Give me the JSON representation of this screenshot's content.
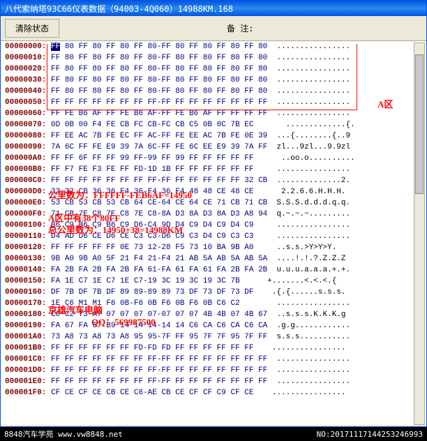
{
  "window": {
    "title": "八代索纳塔93C66仪表数据（94003-4Q060）14988KM.168"
  },
  "toolbar": {
    "clear_btn": "清除状态",
    "remark_label": "备 注:"
  },
  "hex": {
    "rows": [
      {
        "addr": "00000000:",
        "b": "FF 80 FF 80 FF 80 FF 80-FF 80 FF 80 FF 80 FF 80",
        "a": "................"
      },
      {
        "addr": "00000010:",
        "b": "FF 80 FF 80 FF 80 FF 80-FF 80 FF 80 FF 80 FF 80",
        "a": "................"
      },
      {
        "addr": "00000020:",
        "b": "FF 80 FF 80 FF 80 FF 80-FF 80 FF 80 FF 80 FF 80",
        "a": "................"
      },
      {
        "addr": "00000030:",
        "b": "FF 80 FF 80 FF 80 FF 80-FF 80 FF 80 FF 80 FF 80",
        "a": "................"
      },
      {
        "addr": "00000040:",
        "b": "FF 80 FF 80 FF 80 FF 80-FF 80 FF 80 FF 80 FF 80",
        "a": "................"
      },
      {
        "addr": "00000050:",
        "b": "FF FF FF FF FF FF FF FF-FF FF FF FF FF FF FF FF",
        "a": "................"
      },
      {
        "addr": "00000060:",
        "b": "FF FE B6 AF FF FE B6 AF-FF FE B6 AF FF FF FF FF",
        "a": "................"
      },
      {
        "addr": "00000070:",
        "b": "0D 0B 00 F4 FE CB FC CB-FC CB C5 0B 0C 7B EC     ",
        "a": ".............{. "
      },
      {
        "addr": "00000080:",
        "b": "FF EE AC 7B FE EC FF AC-FF FE EE AC 7B FE 0E 39",
        "a": "...{........{..9"
      },
      {
        "addr": "00000090:",
        "b": "7A 6C FF FE E9 39 7A 6C-FF FE 6C EE E9 39 7A FF",
        "a": "zl...9zl...9.9zl"
      },
      {
        "addr": "000000A0:",
        "b": "FF FF 6F FF FF 99 FF-99 FF 99 FF FF FF FF FF    ",
        "a": "..oo.o.......... "
      },
      {
        "addr": "000000B0:",
        "b": "FF F7 FE F3 FE FF FD-1D 1B FF FF FF FF FF FF   ",
        "a": "................"
      },
      {
        "addr": "000000C0:",
        "b": "FF FF FF FF FF FF FF FF-FF FF FF FF FF FF 32 CB",
        "a": "..............2."
      },
      {
        "addr": "000000D0:",
        "b": "32 32 CB 36 36 F4 36-F4 36 F4 48 48 CE 48 CE    ",
        "a": "2.2.6.6.H.H.H."
      },
      {
        "addr": "000000E0:",
        "b": "53 CB 53 CB 53 CB 64 CE-64 CE 64 CE 71 CB 71 CB",
        "a": "S.S.S.d.d.d.q.q."
      },
      {
        "addr": "000000F0:",
        "b": "71 CB 7E C8 7E C8 7E C8-8A D3 8A D3 8A D3 A8 94",
        "a": "q.~.~.~........."
      },
      {
        "addr": "00000100:",
        "b": "B6 C9 B6 C9 B6 C9 D6-C4 9D D4 C9 D4 C9 D4 C9   ",
        "a": "................"
      },
      {
        "addr": "00000110:",
        "b": "D4 AD D6 CE D6 CE C3 C3-D6 C9 C3 D4 C9 C3 C3   ",
        "a": "................"
      },
      {
        "addr": "00000120:",
        "b": "FF FF FF FF FF 0E 73 12-28 F5 73 10 BA 9B A0   ",
        "a": "..s.s.>Y>Y>Y."
      },
      {
        "addr": "00000130:",
        "b": "9B A0 9B A0 5F 21 F4 21-F4 21 AB 5A AB 5A AB 5A",
        "a": "....!.!.?.Z.Z.Z"
      },
      {
        "addr": "00000140:",
        "b": "FA 2B FA 2B FA 2B FA 61-FA 61 FA 61 FA 2B FA 2B",
        "a": "u.u.u.a.a.a.+.+."
      },
      {
        "addr": "00000150:",
        "b": "FA 1E C7 1E C7 1E C7-19 3C 19 3C 19 3C 7B    ",
        "a": "+.......<.<.<.{"
      },
      {
        "addr": "00000160:",
        "b": "DF 7B DF 7B DF 89 89-89 89 73 DF 73 DF 73 DF  ",
        "a": ".{.{......s.s.s."
      },
      {
        "addr": "00000170:",
        "b": "1E C6 M1 M1 F6 0B-F6 0B F6 0B F6 0B C6 C2      ",
        "a": "................"
      },
      {
        "addr": "00000180:",
        "b": "C6 C2 73 A7 07 07 07 07-07 07 07 4B 4B 07 4B 67",
        "a": "..s.s.s.K.K.K.g"
      },
      {
        "addr": "00000190:",
        "b": "FA 67 FA 67 B9 14 14 14-14 14 C6 CA C6 CA C6 CA",
        "a": ".g.g............"
      },
      {
        "addr": "000001A0:",
        "b": "73 A8 73 A8 73 A8 95 95-7F FF 95 7F 7F 95 7F FF",
        "a": "s.s.s..........."
      },
      {
        "addr": "000001B0:",
        "b": "FF FF FF FF FF FF FD-FD FD FF FF FF FF FF FF  ",
        "a": "................"
      },
      {
        "addr": "000001C0:",
        "b": "FF FF FF FF FF FF FF FF-FF FF FF FF FF FF FF FF",
        "a": "................"
      },
      {
        "addr": "000001D0:",
        "b": "FF FF FF FF FF FF FF FF-FF FF FF FF FF FF FF FF",
        "a": "................"
      },
      {
        "addr": "000001E0:",
        "b": "FF FF FF FF FF FF FF FF-FF FF FF FF FF FF FF FF",
        "a": "................"
      },
      {
        "addr": "000001F0:",
        "b": "CF CE CF CE CB CE C6-AE CB CE CF CF C9 CF CE  ",
        "a": "................"
      }
    ]
  },
  "overlays": {
    "a_zone": "A区",
    "line1": "公里数为：FFFFFF-FEB6AF=14950",
    "line2": "A区中有38个80FF",
    "line3": "总公里数为：14950+38=14988KM",
    "line4": "京雄汽车电脑",
    "line5": "QQ：569987500"
  },
  "watermark": {
    "left": "8848汽车学苑 www.vw8848.net",
    "right": "NO:20171117144253246993"
  },
  "colors": {
    "title_bg": "#0054e3",
    "addr_color": "#800000",
    "hex_color": "#000080",
    "overlay_color": "#ff0000"
  }
}
